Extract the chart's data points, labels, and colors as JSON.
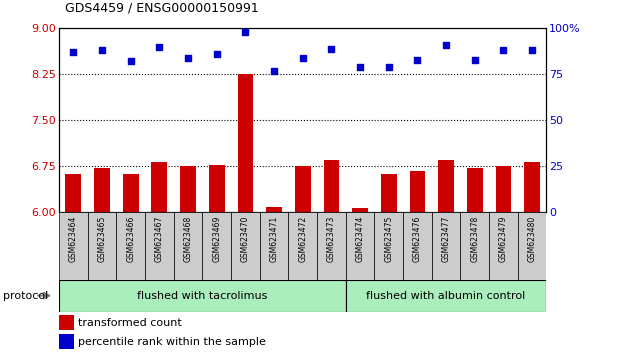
{
  "title": "GDS4459 / ENSG00000150991",
  "samples": [
    "GSM623464",
    "GSM623465",
    "GSM623466",
    "GSM623467",
    "GSM623468",
    "GSM623469",
    "GSM623470",
    "GSM623471",
    "GSM623472",
    "GSM623473",
    "GSM623474",
    "GSM623475",
    "GSM623476",
    "GSM623477",
    "GSM623478",
    "GSM623479",
    "GSM623480"
  ],
  "bar_values": [
    6.62,
    6.72,
    6.62,
    6.82,
    6.75,
    6.78,
    8.25,
    6.08,
    6.76,
    6.85,
    6.07,
    6.62,
    6.68,
    6.85,
    6.72,
    6.75,
    6.82
  ],
  "dot_values": [
    87,
    88,
    82,
    90,
    84,
    86,
    98,
    77,
    84,
    89,
    79,
    79,
    83,
    91,
    83,
    88,
    88
  ],
  "ylim_left": [
    6,
    9
  ],
  "ylim_right": [
    0,
    100
  ],
  "yticks_left": [
    6,
    6.75,
    7.5,
    8.25,
    9
  ],
  "yticks_right": [
    0,
    25,
    50,
    75,
    100
  ],
  "bar_color": "#cc0000",
  "dot_color": "#0000cc",
  "group1_count": 10,
  "group1_label": "flushed with tacrolimus",
  "group2_label": "flushed with albumin control",
  "group_bg": "#aaeebb",
  "protocol_label": "protocol",
  "legend_bar_label": "transformed count",
  "legend_dot_label": "percentile rank within the sample",
  "tick_label_color_left": "#cc0000",
  "tick_label_color_right": "#0000cc",
  "xlabel_bg": "#cccccc",
  "hline_color": "#000000",
  "fig_bg": "#ffffff"
}
